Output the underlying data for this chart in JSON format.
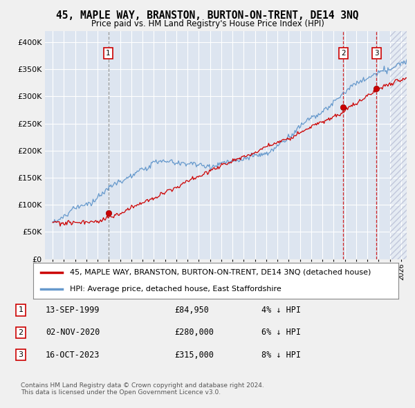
{
  "title": "45, MAPLE WAY, BRANSTON, BURTON-ON-TRENT, DE14 3NQ",
  "subtitle": "Price paid vs. HM Land Registry's House Price Index (HPI)",
  "ylim": [
    0,
    420000
  ],
  "yticks": [
    0,
    50000,
    100000,
    150000,
    200000,
    250000,
    300000,
    350000,
    400000
  ],
  "legend_line1": "45, MAPLE WAY, BRANSTON, BURTON-ON-TRENT, DE14 3NQ (detached house)",
  "legend_line2": "HPI: Average price, detached house, East Staffordshire",
  "transactions": [
    {
      "num": 1,
      "date": "13-SEP-1999",
      "price": "84,950",
      "pct": "4%",
      "dir": "↓",
      "year_x": 1999.95,
      "dash": "gray"
    },
    {
      "num": 2,
      "date": "02-NOV-2020",
      "price": "280,000",
      "pct": "6%",
      "dir": "↓",
      "year_x": 2020.85,
      "dash": "red"
    },
    {
      "num": 3,
      "date": "16-OCT-2023",
      "price": "315,000",
      "pct": "8%",
      "dir": "↓",
      "year_x": 2023.8,
      "dash": "red"
    }
  ],
  "footer1": "Contains HM Land Registry data © Crown copyright and database right 2024.",
  "footer2": "This data is licensed under the Open Government Licence v3.0.",
  "hpi_color": "#6699cc",
  "price_color": "#cc0000",
  "bg_color": "#dde5f0",
  "grid_color": "#ffffff",
  "fig_bg": "#f0f0f0",
  "hatch_start": 2025.0,
  "xlim_left": 1994.3,
  "xlim_right": 2026.5
}
